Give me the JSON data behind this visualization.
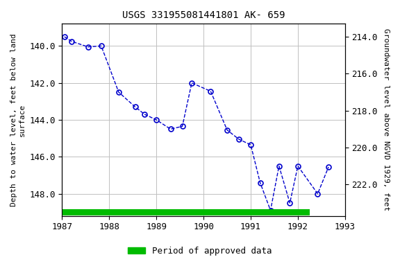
{
  "title": "USGS 331955081441801 AK- 659",
  "x_data": [
    1987.05,
    1987.2,
    1987.55,
    1987.83,
    1988.2,
    1988.55,
    1988.75,
    1989.0,
    1989.3,
    1989.55,
    1989.75,
    1990.15,
    1990.5,
    1990.75,
    1991.0,
    1991.2,
    1991.42,
    1991.6,
    1991.83,
    1992.0,
    1992.42,
    1992.65
  ],
  "y_data": [
    139.5,
    139.75,
    140.05,
    140.0,
    142.5,
    143.3,
    143.7,
    144.0,
    144.5,
    144.35,
    142.0,
    142.45,
    144.55,
    145.05,
    145.35,
    147.4,
    148.9,
    146.5,
    148.5,
    146.5,
    148.0,
    146.55
  ],
  "y_left_min": 138.8,
  "y_left_max": 149.2,
  "y_right_min": 213.3,
  "y_right_max": 223.7,
  "x_min": 1987,
  "x_max": 1993,
  "x_ticks": [
    1987,
    1988,
    1989,
    1990,
    1991,
    1992,
    1993
  ],
  "y_left_ticks": [
    140.0,
    142.0,
    144.0,
    146.0,
    148.0
  ],
  "y_right_ticks": [
    222.0,
    220.0,
    218.0,
    216.0,
    214.0
  ],
  "y_right_labels": [
    "222.0",
    "220.0",
    "218.0",
    "216.0",
    "214.0"
  ],
  "ylabel_left": "Depth to water level, feet below land\nsurface",
  "ylabel_right": "Groundwater level above NGVD 1929, feet",
  "line_color": "#0000cc",
  "marker_color": "#0000cc",
  "green_bar_xmin": 1987.0,
  "green_bar_xmax": 1992.25,
  "legend_label": "Period of approved data",
  "bg_color": "#ffffff",
  "grid_color": "#c0c0c0"
}
